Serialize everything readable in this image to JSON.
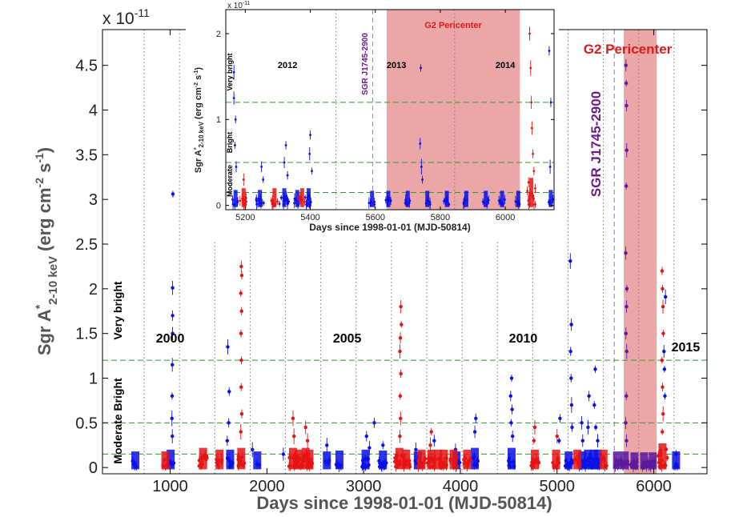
{
  "chart_data": [
    {
      "id": "main",
      "type": "scatter",
      "title": "",
      "xlabel": "Days since 1998-01-01 (MJD-50814)",
      "ylabel_main": "Sgr A",
      "ylabel_sup": "*",
      "ylabel_sub": "2-10 keV",
      "ylabel_units": "(erg cm",
      "ylabel_units_sup1": "-2",
      "ylabel_units_mid": " s",
      "ylabel_units_sup2": "-1",
      "ylabel_units_end": ")",
      "exponent_label": "x 10",
      "exponent_power": "-11",
      "xlim": [
        300,
        6550
      ],
      "ylim": [
        -0.07,
        4.9
      ],
      "xticks": [
        1000,
        2000,
        3000,
        4000,
        5000,
        6000
      ],
      "yticks": [
        0,
        0.5,
        1,
        1.5,
        2,
        2.5,
        3,
        3.5,
        4,
        4.5
      ],
      "ytick_labels": [
        "0",
        "0.5",
        "1",
        "1.5",
        "2",
        "2.5",
        "3",
        "3.5",
        "4",
        "4.5"
      ],
      "threshold_lines": [
        0.15,
        0.5,
        1.2
      ],
      "year_boundaries": [
        730,
        1096,
        1461,
        1826,
        2191,
        2557,
        2922,
        3287,
        3652,
        4018,
        4383,
        4748,
        5113,
        5479,
        5844,
        6209
      ],
      "year_labels": [
        {
          "text": "2000",
          "x": 1000,
          "y": 1.4
        },
        {
          "text": "2005",
          "x": 2830,
          "y": 1.4
        },
        {
          "text": "2010",
          "x": 4650,
          "y": 1.4
        },
        {
          "text": "2015",
          "x": 6330,
          "y": 1.3
        }
      ],
      "level_labels": {
        "very_bright": "Very bright",
        "moderate_bright": "Moderate Bright"
      },
      "pericenter_range": [
        5690,
        6030
      ],
      "pericenter_label": "G2 Pericenter",
      "magnetar_x": 5592,
      "magnetar_label": "SGR J1745-2900",
      "colors": {
        "blue": "#0a10e8",
        "red": "#e61414",
        "purple": "#5a1aa0",
        "green": "#2f9a2f",
        "pink": "#eaa2a2",
        "pericenter_text": "#e01818",
        "magnetar_text": "#6a1a8a"
      },
      "series": [
        {
          "color": "blue",
          "clusters": [
            [
              640,
              0.06,
              4,
              5
            ],
            [
              1005,
              0.08,
              4,
              7
            ],
            [
              1620,
              0.08,
              4,
              8
            ],
            [
              1900,
              0.06,
              3,
              3
            ],
            [
              2620,
              0.06,
              3,
              4
            ],
            [
              2750,
              0.07,
              4,
              5
            ],
            [
              3020,
              0.08,
              5,
              12
            ],
            [
              3200,
              0.07,
              5,
              10
            ],
            [
              3560,
              0.06,
              4,
              6
            ],
            [
              3960,
              0.06,
              4,
              6
            ],
            [
              4150,
              0.1,
              4,
              8
            ],
            [
              4530,
              0.1,
              4,
              8
            ],
            [
              5120,
              0.06,
              5,
              12
            ],
            [
              5260,
              0.06,
              5,
              12
            ],
            [
              5320,
              0.08,
              5,
              10
            ],
            [
              5380,
              0.08,
              4,
              10
            ],
            [
              5420,
              0.08,
              4,
              8
            ],
            [
              6230,
              0.06,
              3,
              4
            ]
          ],
          "points": [
            [
              1028,
              3.06
            ],
            [
              1025,
              2.01
            ],
            [
              1025,
              1.7
            ],
            [
              1025,
              1.5
            ],
            [
              1022,
              1.15
            ],
            [
              1020,
              0.8
            ],
            [
              1018,
              0.55
            ],
            [
              1022,
              0.35
            ],
            [
              1595,
              1.35
            ],
            [
              1610,
              0.85
            ],
            [
              1605,
              0.5
            ],
            [
              1590,
              0.3
            ],
            [
              1850,
              0.2
            ],
            [
              2170,
              0.15
            ],
            [
              2620,
              0.25
            ],
            [
              3030,
              0.35
            ],
            [
              3110,
              0.5
            ],
            [
              3060,
              0.22
            ],
            [
              3200,
              0.25
            ],
            [
              3540,
              0.2
            ],
            [
              3730,
              0.3
            ],
            [
              3950,
              0.2
            ],
            [
              4160,
              0.55
            ],
            [
              4150,
              0.4
            ],
            [
              4530,
              1.0
            ],
            [
              4520,
              0.8
            ],
            [
              4535,
              0.65
            ],
            [
              4525,
              0.5
            ],
            [
              4540,
              0.35
            ],
            [
              5030,
              0.55
            ],
            [
              5020,
              0.3
            ],
            [
              5137,
              2.31
            ],
            [
              5148,
              1.6
            ],
            [
              5140,
              1.3
            ],
            [
              5145,
              1.0
            ],
            [
              5150,
              0.7
            ],
            [
              5155,
              0.45
            ],
            [
              5255,
              0.5
            ],
            [
              5265,
              0.3
            ],
            [
              5330,
              0.8
            ],
            [
              5320,
              0.45
            ],
            [
              5395,
              1.1
            ],
            [
              5385,
              0.7
            ],
            [
              5400,
              0.45
            ],
            [
              5420,
              0.3
            ],
            [
              6121,
              1.91
            ],
            [
              6105,
              1.3
            ],
            [
              6110,
              1.1
            ],
            [
              6115,
              0.8
            ],
            [
              6230,
              0.15
            ]
          ]
        },
        {
          "color": "red",
          "clusters": [
            [
              950,
              0.06,
              3,
              4
            ],
            [
              1340,
              0.1,
              5,
              12
            ],
            [
              1510,
              0.08,
              4,
              8
            ],
            [
              1735,
              0.1,
              5,
              12
            ],
            [
              2270,
              0.1,
              5,
              14
            ],
            [
              2330,
              0.08,
              4,
              10
            ],
            [
              2400,
              0.1,
              5,
              12
            ],
            [
              2440,
              0.08,
              4,
              8
            ],
            [
              3370,
              0.1,
              6,
              16
            ],
            [
              3440,
              0.08,
              5,
              10
            ],
            [
              3600,
              0.08,
              5,
              10
            ],
            [
              3700,
              0.08,
              5,
              14
            ],
            [
              3770,
              0.08,
              5,
              10
            ],
            [
              3830,
              0.08,
              5,
              10
            ],
            [
              3930,
              0.08,
              4,
              8
            ],
            [
              4070,
              0.08,
              5,
              10
            ],
            [
              4770,
              0.08,
              5,
              12
            ],
            [
              4990,
              0.08,
              4,
              10
            ],
            [
              5210,
              0.08,
              4,
              8
            ],
            [
              5480,
              0.08,
              4,
              8
            ],
            [
              6090,
              0.15,
              6,
              16
            ]
          ],
          "points": [
            [
              1735,
              2.25
            ],
            [
              1740,
              2.15
            ],
            [
              1730,
              1.95
            ],
            [
              1738,
              1.75
            ],
            [
              1732,
              1.5
            ],
            [
              1736,
              1.2
            ],
            [
              1734,
              0.9
            ],
            [
              1740,
              0.6
            ],
            [
              1730,
              0.4
            ],
            [
              2270,
              0.55
            ],
            [
              2280,
              0.35
            ],
            [
              2400,
              0.45
            ],
            [
              2420,
              0.3
            ],
            [
              3385,
              1.8
            ],
            [
              3390,
              1.6
            ],
            [
              3380,
              1.45
            ],
            [
              3375,
              1.3
            ],
            [
              3385,
              1.05
            ],
            [
              3378,
              0.8
            ],
            [
              3382,
              0.55
            ],
            [
              3375,
              0.35
            ],
            [
              3700,
              0.4
            ],
            [
              3690,
              0.25
            ],
            [
              4770,
              0.45
            ],
            [
              4760,
              0.3
            ],
            [
              5000,
              0.35
            ],
            [
              6086,
              2.2
            ],
            [
              6090,
              2.0
            ],
            [
              6095,
              1.8
            ],
            [
              6098,
              1.5
            ],
            [
              6085,
              1.2
            ],
            [
              6090,
              0.9
            ],
            [
              6096,
              0.6
            ],
            [
              6088,
              0.4
            ]
          ]
        },
        {
          "color": "purple",
          "clusters": [
            [
              5620,
              0.06,
              5,
              10
            ],
            [
              5700,
              0.06,
              5,
              12
            ],
            [
              5800,
              0.05,
              5,
              12
            ],
            [
              5900,
              0.05,
              5,
              12
            ],
            [
              5990,
              0.05,
              5,
              10
            ]
          ],
          "points": [
            [
              5712,
              4.5
            ],
            [
              5715,
              4.3
            ],
            [
              5718,
              4.05
            ],
            [
              5720,
              3.55
            ],
            [
              5715,
              3.15
            ],
            [
              5710,
              2.4
            ],
            [
              5722,
              2.0
            ],
            [
              5718,
              1.8
            ],
            [
              5712,
              1.5
            ],
            [
              5720,
              1.3
            ],
            [
              5716,
              0.8
            ],
            [
              5710,
              0.5
            ],
            [
              5718,
              0.3
            ]
          ]
        }
      ]
    },
    {
      "id": "inset",
      "type": "scatter",
      "xlabel": "Days since 1998-01-01 (MJD-50814)",
      "ylabel_main": "Sgr A",
      "ylabel_sup": "*",
      "ylabel_sub": "2-10 keV",
      "ylabel_units": "(erg cm",
      "ylabel_units_sup1": "-2",
      "ylabel_units_mid": " s",
      "ylabel_units_sup2": "-1",
      "ylabel_units_end": ")",
      "exponent_label": "x 10",
      "exponent_power": "-11",
      "xlim": [
        5140,
        6150
      ],
      "ylim": [
        -0.05,
        2.28
      ],
      "xticks": [
        5200,
        5400,
        5600,
        5800,
        6000
      ],
      "yticks": [
        0,
        1,
        2
      ],
      "ytick_labels": [
        "0",
        "1",
        "2"
      ],
      "threshold_lines": [
        0.15,
        0.5,
        1.2
      ],
      "year_boundaries": [
        5479,
        5844
      ],
      "year_labels": [
        {
          "text": "2012",
          "x": 5330,
          "y": 1.6
        },
        {
          "text": "2013",
          "x": 5665,
          "y": 1.6
        },
        {
          "text": "2014",
          "x": 6000,
          "y": 1.6
        }
      ],
      "level_labels": {
        "very_bright": "Very bright",
        "bright": "Bright",
        "moderate": "Moderate"
      },
      "pericenter_range": [
        5635,
        6045
      ],
      "pericenter_label": "G2 Pericenter",
      "magnetar_x": 5592,
      "magnetar_label": "SGR J1745-2900",
      "series": [
        {
          "color": "blue",
          "clusters": [
            [
              5170,
              0.06,
              4,
              5
            ],
            [
              5245,
              0.06,
              5,
              12
            ],
            [
              5320,
              0.08,
              6,
              14
            ],
            [
              5360,
              0.06,
              4,
              8
            ],
            [
              5395,
              0.08,
              5,
              10
            ],
            [
              5590,
              0.05,
              4,
              5
            ],
            [
              5640,
              0.05,
              4,
              6
            ],
            [
              5700,
              0.05,
              4,
              6
            ],
            [
              5760,
              0.05,
              4,
              6
            ],
            [
              5820,
              0.05,
              4,
              6
            ],
            [
              5880,
              0.05,
              4,
              6
            ],
            [
              5940,
              0.05,
              4,
              6
            ],
            [
              5990,
              0.05,
              4,
              6
            ],
            [
              6040,
              0.05,
              4,
              6
            ],
            [
              6140,
              0.06,
              3,
              5
            ]
          ],
          "points": [
            [
              5165,
              1.55
            ],
            [
              5165,
              1.25
            ],
            [
              5170,
              1.0
            ],
            [
              5168,
              0.7
            ],
            [
              5172,
              0.45
            ],
            [
              5250,
              0.45
            ],
            [
              5255,
              0.3
            ],
            [
              5325,
              0.7
            ],
            [
              5320,
              0.5
            ],
            [
              5330,
              0.35
            ],
            [
              5400,
              0.82
            ],
            [
              5398,
              0.6
            ],
            [
              5405,
              0.4
            ],
            [
              5740,
              1.6
            ],
            [
              5738,
              0.72
            ],
            [
              5742,
              0.45
            ],
            [
              5745,
              0.3
            ],
            [
              6135,
              1.8
            ],
            [
              6140,
              1.2
            ],
            [
              6138,
              0.45
            ]
          ]
        },
        {
          "color": "red",
          "clusters": [
            [
              5195,
              0.08,
              5,
              10
            ],
            [
              5290,
              0.08,
              4,
              8
            ],
            [
              5375,
              0.08,
              4,
              8
            ],
            [
              6080,
              0.2,
              5,
              14
            ]
          ],
          "points": [
            [
              6075,
              2.0
            ],
            [
              6078,
              1.6
            ],
            [
              6080,
              1.2
            ],
            [
              6082,
              0.9
            ],
            [
              6085,
              0.6
            ],
            [
              6088,
              0.4
            ],
            [
              5195,
              0.3
            ]
          ]
        }
      ]
    }
  ]
}
